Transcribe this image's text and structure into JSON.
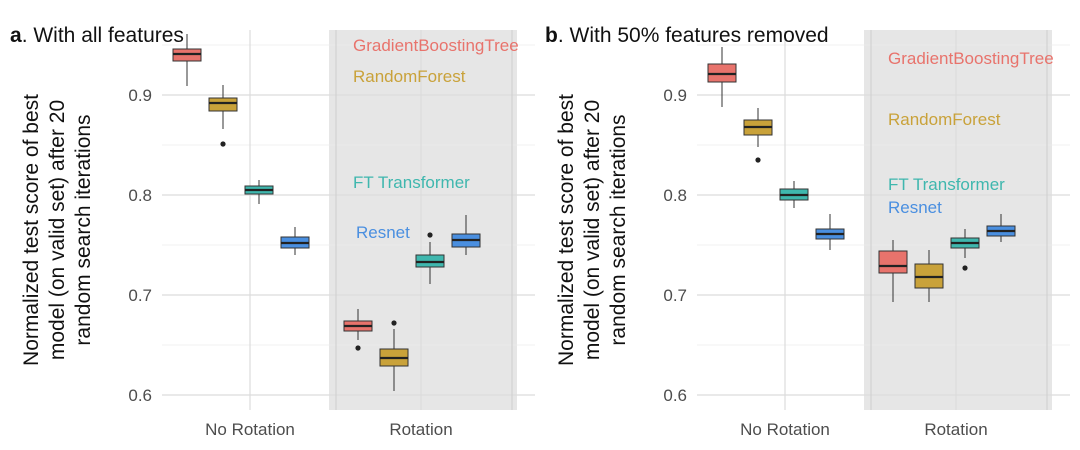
{
  "chart_data": [
    {
      "type": "boxplot",
      "panel_letter": "a",
      "title": ". With all features",
      "ylabel_lines": [
        "Normalized test score of best",
        "model (on valid set) after 20",
        "random search iterations"
      ],
      "xlabel": "",
      "ylim": [
        0.585,
        0.965
      ],
      "yticks": [
        0.6,
        0.7,
        0.8,
        0.9
      ],
      "ytick_labels": [
        "0.6",
        "0.7",
        "0.8",
        "0.9"
      ],
      "groups": [
        "No Rotation",
        "Rotation"
      ],
      "shaded_group": "Rotation",
      "series": [
        {
          "name": "GradientBoostingTree",
          "color": "#E8736C",
          "boxes": [
            {
              "group": "No Rotation",
              "whisker_low": 0.909,
              "q1": 0.934,
              "median": 0.941,
              "q3": 0.946,
              "whisker_high": 0.961,
              "outliers": []
            },
            {
              "group": "Rotation",
              "whisker_low": 0.655,
              "q1": 0.664,
              "median": 0.669,
              "q3": 0.674,
              "whisker_high": 0.686,
              "outliers": [
                0.647
              ]
            }
          ]
        },
        {
          "name": "RandomForest",
          "color": "#C9A23A",
          "boxes": [
            {
              "group": "No Rotation",
              "whisker_low": 0.866,
              "q1": 0.884,
              "median": 0.892,
              "q3": 0.897,
              "whisker_high": 0.91,
              "outliers": [
                0.851
              ]
            },
            {
              "group": "Rotation",
              "whisker_low": 0.604,
              "q1": 0.629,
              "median": 0.637,
              "q3": 0.646,
              "whisker_high": 0.666,
              "outliers": [
                0.672
              ]
            }
          ]
        },
        {
          "name": "FT Transformer",
          "color": "#3FB7AE",
          "boxes": [
            {
              "group": "No Rotation",
              "whisker_low": 0.791,
              "q1": 0.801,
              "median": 0.805,
              "q3": 0.809,
              "whisker_high": 0.815,
              "outliers": []
            },
            {
              "group": "Rotation",
              "whisker_low": 0.711,
              "q1": 0.728,
              "median": 0.733,
              "q3": 0.74,
              "whisker_high": 0.753,
              "outliers": [
                0.76
              ]
            }
          ]
        },
        {
          "name": "Resnet",
          "color": "#4A8FE0",
          "boxes": [
            {
              "group": "No Rotation",
              "whisker_low": 0.74,
              "q1": 0.747,
              "median": 0.752,
              "q3": 0.758,
              "whisker_high": 0.768,
              "outliers": []
            },
            {
              "group": "Rotation",
              "whisker_low": 0.74,
              "q1": 0.748,
              "median": 0.755,
              "q3": 0.761,
              "whisker_high": 0.78,
              "outliers": []
            }
          ]
        }
      ],
      "annotations": [
        {
          "text": "GradientBoostingTree",
          "series": "GradientBoostingTree",
          "y": 0.95
        },
        {
          "text": "RandomForest",
          "series": "RandomForest",
          "y": 0.919
        },
        {
          "text": "FT Transformer",
          "series": "FT Transformer",
          "y": 0.813
        },
        {
          "text": "Resnet",
          "series": "Resnet",
          "y": 0.763
        }
      ]
    },
    {
      "type": "boxplot",
      "panel_letter": "b",
      "title": ". With 50% features removed",
      "ylabel_lines": [
        "Normalized test score of best",
        "model (on valid set) after 20",
        "random search iterations"
      ],
      "xlabel": "",
      "ylim": [
        0.585,
        0.965
      ],
      "yticks": [
        0.6,
        0.7,
        0.8,
        0.9
      ],
      "ytick_labels": [
        "0.6",
        "0.7",
        "0.8",
        "0.9"
      ],
      "groups": [
        "No Rotation",
        "Rotation"
      ],
      "shaded_group": "Rotation",
      "series": [
        {
          "name": "GradientBoostingTree",
          "color": "#E8736C",
          "boxes": [
            {
              "group": "No Rotation",
              "whisker_low": 0.888,
              "q1": 0.913,
              "median": 0.921,
              "q3": 0.931,
              "whisker_high": 0.948,
              "outliers": []
            },
            {
              "group": "Rotation",
              "whisker_low": 0.693,
              "q1": 0.722,
              "median": 0.729,
              "q3": 0.744,
              "whisker_high": 0.755,
              "outliers": []
            }
          ]
        },
        {
          "name": "RandomForest",
          "color": "#C9A23A",
          "boxes": [
            {
              "group": "No Rotation",
              "whisker_low": 0.848,
              "q1": 0.86,
              "median": 0.868,
              "q3": 0.875,
              "whisker_high": 0.887,
              "outliers": [
                0.835
              ]
            },
            {
              "group": "Rotation",
              "whisker_low": 0.693,
              "q1": 0.707,
              "median": 0.718,
              "q3": 0.731,
              "whisker_high": 0.745,
              "outliers": []
            }
          ]
        },
        {
          "name": "FT Transformer",
          "color": "#3FB7AE",
          "boxes": [
            {
              "group": "No Rotation",
              "whisker_low": 0.787,
              "q1": 0.795,
              "median": 0.8,
              "q3": 0.806,
              "whisker_high": 0.814,
              "outliers": []
            },
            {
              "group": "Rotation",
              "whisker_low": 0.737,
              "q1": 0.747,
              "median": 0.752,
              "q3": 0.757,
              "whisker_high": 0.766,
              "outliers": [
                0.727
              ]
            }
          ]
        },
        {
          "name": "Resnet",
          "color": "#4A8FE0",
          "boxes": [
            {
              "group": "No Rotation",
              "whisker_low": 0.745,
              "q1": 0.756,
              "median": 0.761,
              "q3": 0.766,
              "whisker_high": 0.781,
              "outliers": []
            },
            {
              "group": "Rotation",
              "whisker_low": 0.753,
              "q1": 0.759,
              "median": 0.764,
              "q3": 0.769,
              "whisker_high": 0.781,
              "outliers": []
            }
          ]
        }
      ],
      "annotations": [
        {
          "text": "GradientBoostingTree",
          "series": "GradientBoostingTree",
          "y": 0.937
        },
        {
          "text": "RandomForest",
          "series": "RandomForest",
          "y": 0.876
        },
        {
          "text": "FT Transformer",
          "series": "FT Transformer",
          "y": 0.811
        },
        {
          "text": "Resnet",
          "series": "Resnet",
          "y": 0.788
        }
      ]
    }
  ]
}
